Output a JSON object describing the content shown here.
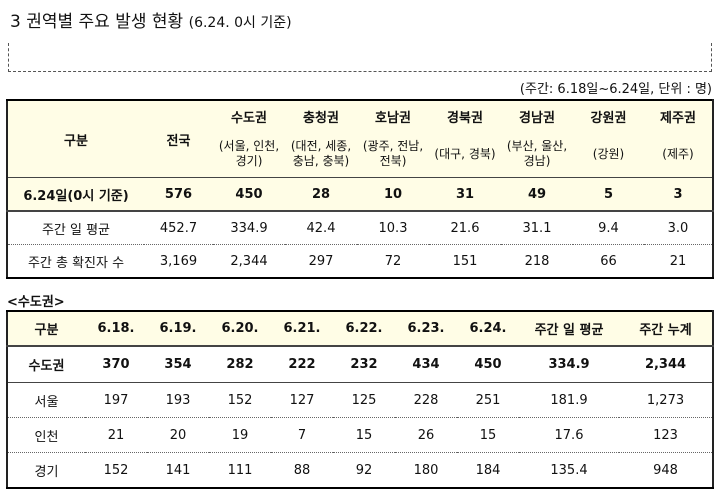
{
  "heading": {
    "title": "3 권역별 주요 발생 현황",
    "basis": "(6.24. 0시 기준)"
  },
  "unit_note": "(주간: 6.18일~6.24일, 단위 : 명)",
  "regional_table": {
    "gubun": "구분",
    "national": "전국",
    "regions": [
      {
        "name": "수도권",
        "detail": "(서울, 인천, 경기)"
      },
      {
        "name": "충청권",
        "detail": "(대전, 세종, 충남, 충북)"
      },
      {
        "name": "호남권",
        "detail": "(광주, 전남, 전북)"
      },
      {
        "name": "경북권",
        "detail": "(대구, 경북)"
      },
      {
        "name": "경남권",
        "detail": "(부산, 울산, 경남)"
      },
      {
        "name": "강원권",
        "detail": "(강원)"
      },
      {
        "name": "제주권",
        "detail": "(제주)"
      }
    ],
    "rows": [
      {
        "label": "6.24일(0시 기준)",
        "national": "576",
        "values": [
          "450",
          "28",
          "10",
          "31",
          "49",
          "5",
          "3"
        ]
      },
      {
        "label": "주간 일 평균",
        "national": "452.7",
        "values": [
          "334.9",
          "42.4",
          "10.3",
          "21.6",
          "31.1",
          "9.4",
          "3.0"
        ]
      },
      {
        "label": "주간 총 확진자 수",
        "national": "3,169",
        "values": [
          "2,344",
          "297",
          "72",
          "151",
          "218",
          "66",
          "21"
        ]
      }
    ]
  },
  "capital_section": {
    "title": "<수도권>",
    "headers": [
      "구분",
      "6.18.",
      "6.19.",
      "6.20.",
      "6.21.",
      "6.22.",
      "6.23.",
      "6.24.",
      "주간 일 평균",
      "주간 누계"
    ],
    "rows": [
      [
        "수도권",
        "370",
        "354",
        "282",
        "222",
        "232",
        "434",
        "450",
        "334.9",
        "2,344"
      ],
      [
        "서울",
        "197",
        "193",
        "152",
        "127",
        "125",
        "228",
        "251",
        "181.9",
        "1,273"
      ],
      [
        "인천",
        "21",
        "20",
        "19",
        "7",
        "15",
        "26",
        "15",
        "17.6",
        "123"
      ],
      [
        "경기",
        "152",
        "141",
        "111",
        "88",
        "92",
        "180",
        "184",
        "135.4",
        "948"
      ]
    ]
  }
}
